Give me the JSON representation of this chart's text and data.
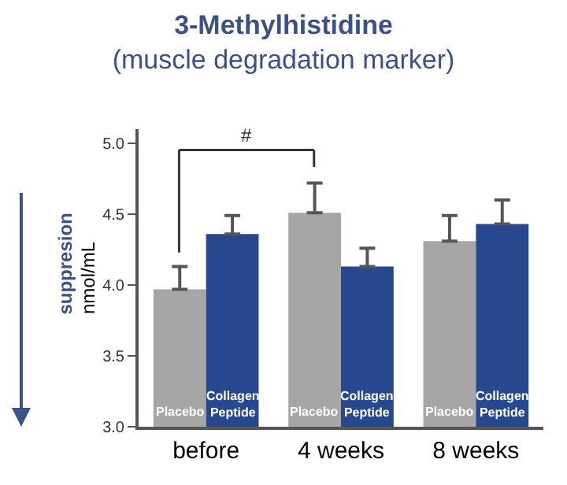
{
  "chart_data": {
    "type": "bar",
    "title": "3-Methylhistidine",
    "subtitle": "(muscle degradation marker)",
    "ylabel": "nmol/mL",
    "categories": [
      "before",
      "4 weeks",
      "8 weeks"
    ],
    "series": [
      {
        "name": "Placebo",
        "color": "#a6a6a6",
        "values": [
          3.97,
          4.51,
          4.31
        ],
        "errors": [
          [
            3.97,
            4.13
          ],
          [
            4.51,
            4.72
          ],
          [
            4.31,
            4.49
          ]
        ]
      },
      {
        "name": "Collagen Peptide",
        "color": "#27478f",
        "values": [
          4.36,
          4.13,
          4.43
        ],
        "errors": [
          [
            4.36,
            4.49
          ],
          [
            4.13,
            4.26
          ],
          [
            4.43,
            4.6
          ]
        ]
      }
    ],
    "ylim": [
      3.0,
      5.1
    ],
    "yticks": [
      {
        "value": 3.0,
        "label": "3.0"
      },
      {
        "value": 3.5,
        "label": "3.5"
      },
      {
        "value": 4.0,
        "label": "4.0"
      },
      {
        "value": 4.5,
        "label": "4.5"
      },
      {
        "value": 5.0,
        "label": "5.0"
      }
    ],
    "annotations": [
      "#",
      "suppresion"
    ],
    "grid": false,
    "legend": false
  }
}
